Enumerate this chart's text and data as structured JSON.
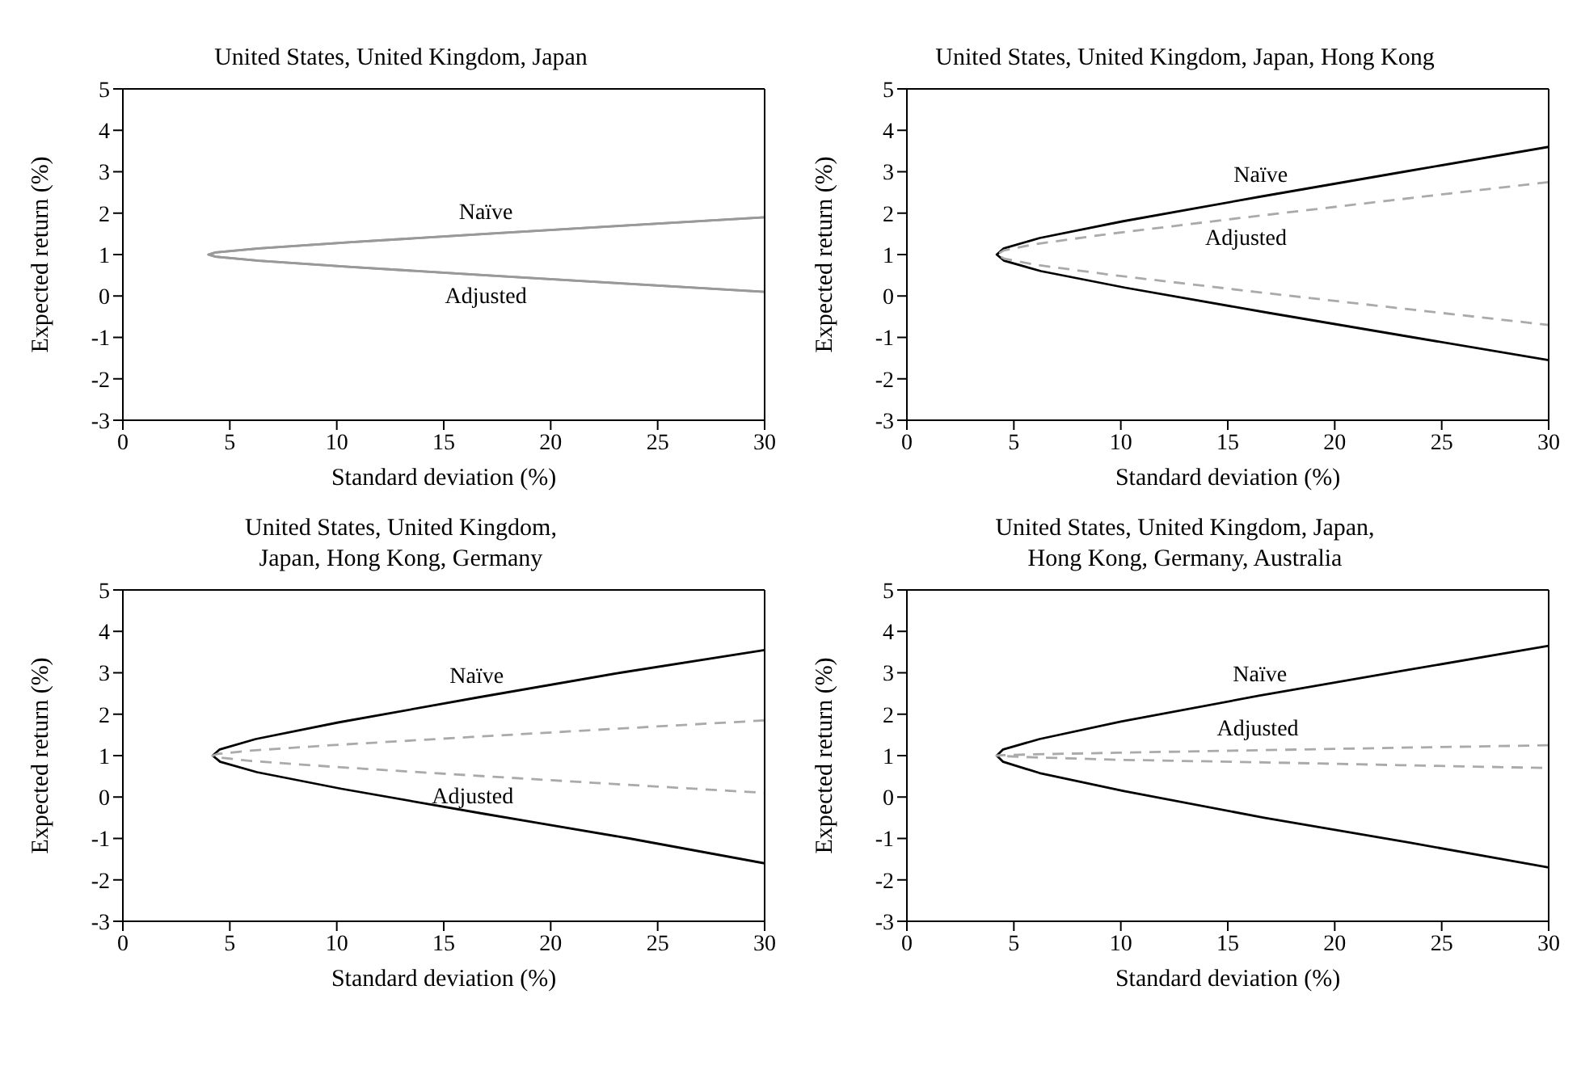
{
  "chart_data": [
    {
      "type": "line",
      "title": "United States, United Kingdom, Japan",
      "xlabel": "Standard deviation (%)",
      "ylabel": "Expected return (%)",
      "xlim": [
        0,
        30
      ],
      "xticks": [
        0,
        5,
        10,
        15,
        20,
        25,
        30
      ],
      "ylim": [
        -3,
        5
      ],
      "yticks": [
        -3,
        -2,
        -1,
        0,
        1,
        2,
        3,
        4,
        5
      ],
      "grid": false,
      "legend": false,
      "series": [
        {
          "name": "Naïve",
          "color": "#999999",
          "line_style": "solid",
          "x": [
            30,
            23.45,
            16.97,
            10.68,
            6.36,
            4.33,
            4.0,
            4.33,
            6.36,
            10.68,
            16.97,
            23.45,
            30
          ],
          "values": [
            1.9,
            1.7,
            1.5,
            1.3,
            1.15,
            1.05,
            1.0,
            0.95,
            0.85,
            0.7,
            0.5,
            0.3,
            0.1
          ]
        },
        {
          "name": "Adjusted",
          "color": "#999999",
          "line_style": "solid",
          "x": [
            30,
            23.45,
            16.97,
            10.68,
            6.36,
            4.33,
            4.0,
            4.33,
            6.36,
            10.68,
            16.97,
            23.45,
            30
          ],
          "values": [
            1.9,
            1.7,
            1.5,
            1.3,
            1.15,
            1.05,
            1.0,
            0.95,
            0.85,
            0.7,
            0.5,
            0.3,
            0.1
          ]
        }
      ]
    },
    {
      "type": "line",
      "title": "United States, United Kingdom, Japan, Hong Kong",
      "xlabel": "Standard deviation (%)",
      "ylabel": "Expected return (%)",
      "xlim": [
        0,
        30
      ],
      "xticks": [
        0,
        5,
        10,
        15,
        20,
        25,
        30
      ],
      "ylim": [
        -3,
        5
      ],
      "yticks": [
        -3,
        -2,
        -1,
        0,
        1,
        2,
        3,
        4,
        5
      ],
      "grid": false,
      "legend": false,
      "series": [
        {
          "name": "Naïve",
          "color": "#000000",
          "line_style": "solid",
          "x": [
            30,
            23.24,
            16.54,
            10.06,
            6.21,
            4.53,
            4.2,
            4.55,
            6.27,
            10.21,
            16.83,
            23.68,
            30
          ],
          "values": [
            3.6,
            3.0,
            2.4,
            1.8,
            1.4,
            1.15,
            1.0,
            0.85,
            0.6,
            0.2,
            -0.4,
            -1.0,
            -1.55
          ]
        },
        {
          "name": "Adjusted",
          "color": "#aaaaaa",
          "line_style": "dashed",
          "x": [
            30,
            22.47,
            15.85,
            9.47,
            5.97,
            4.53,
            4.2,
            4.55,
            6.06,
            9.7,
            16.28,
            23.11,
            30
          ],
          "values": [
            2.75,
            2.3,
            1.9,
            1.5,
            1.25,
            1.1,
            1.0,
            0.9,
            0.75,
            0.5,
            0.1,
            -0.3,
            -0.7
          ]
        }
      ]
    },
    {
      "type": "line",
      "title": "United States, United Kingdom,\nJapan, Hong Kong, Germany",
      "xlabel": "Standard deviation (%)",
      "ylabel": "Expected return (%)",
      "xlim": [
        0,
        30
      ],
      "xticks": [
        0,
        5,
        10,
        15,
        20,
        25,
        30
      ],
      "ylim": [
        -3,
        5
      ],
      "yticks": [
        -3,
        -2,
        -1,
        0,
        1,
        2,
        3,
        4,
        5
      ],
      "grid": false,
      "legend": false,
      "series": [
        {
          "name": "Naïve",
          "color": "#000000",
          "line_style": "solid",
          "x": [
            30,
            23.24,
            16.54,
            10.06,
            6.21,
            4.53,
            4.2,
            4.55,
            6.27,
            10.21,
            16.83,
            23.68,
            30
          ],
          "values": [
            3.55,
            3.0,
            2.4,
            1.8,
            1.4,
            1.15,
            1.0,
            0.85,
            0.6,
            0.2,
            -0.4,
            -1.0,
            -1.6
          ]
        },
        {
          "name": "Adjusted",
          "color": "#aaaaaa",
          "line_style": "dashed",
          "x": [
            30,
            23.1,
            16.3,
            9.7,
            5.94,
            4.43,
            4.2,
            4.4,
            6.0,
            9.85,
            16.35,
            22.8,
            30
          ],
          "values": [
            1.85,
            1.65,
            1.45,
            1.25,
            1.12,
            1.04,
            1.0,
            0.96,
            0.87,
            0.73,
            0.52,
            0.32,
            0.1
          ]
        }
      ]
    },
    {
      "type": "line",
      "title": "United States, United Kingdom, Japan,\nHong Kong, Germany, Australia",
      "xlabel": "Standard deviation (%)",
      "ylabel": "Expected return (%)",
      "xlim": [
        0,
        30
      ],
      "xticks": [
        0,
        5,
        10,
        15,
        20,
        25,
        30
      ],
      "ylim": [
        -3,
        5
      ],
      "yticks": [
        -3,
        -2,
        -1,
        0,
        1,
        2,
        3,
        4,
        5
      ],
      "grid": false,
      "legend": false,
      "series": [
        {
          "name": "Naïve",
          "color": "#000000",
          "line_style": "solid",
          "x": [
            30,
            23.2,
            16.5,
            10.0,
            6.2,
            4.5,
            4.2,
            4.5,
            6.2,
            10.1,
            16.7,
            23.5,
            30
          ],
          "values": [
            3.65,
            3.05,
            2.45,
            1.82,
            1.4,
            1.15,
            1.0,
            0.85,
            0.58,
            0.15,
            -0.5,
            -1.1,
            -1.7
          ]
        },
        {
          "name": "Adjusted",
          "color": "#aaaaaa",
          "line_style": "dashed",
          "x": [
            30,
            23,
            16.4,
            9.8,
            5.9,
            4.45,
            4.2,
            4.45,
            5.9,
            9.8,
            16.4,
            23,
            30
          ],
          "values": [
            1.25,
            1.19,
            1.13,
            1.07,
            1.03,
            1.01,
            1.0,
            0.99,
            0.96,
            0.9,
            0.84,
            0.77,
            0.7
          ]
        }
      ]
    }
  ]
}
